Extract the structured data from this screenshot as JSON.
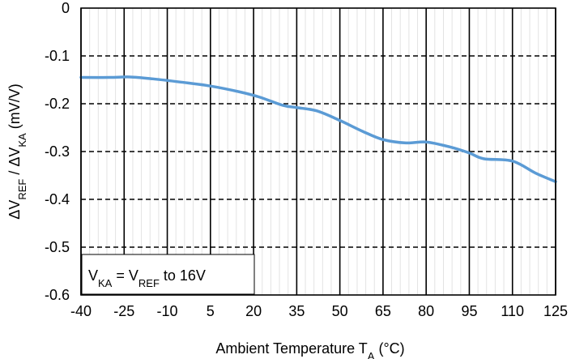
{
  "chart_data": {
    "type": "line",
    "title": "",
    "xlabel": {
      "base": "Ambient Temperature T",
      "sub": "A",
      "unit": " (°C)"
    },
    "ylabel": {
      "parts": [
        {
          "text": "ΔV",
          "sub": false
        },
        {
          "text": "REF",
          "sub": true
        },
        {
          "text": " / ΔV",
          "sub": false
        },
        {
          "text": "KA",
          "sub": true
        },
        {
          "text": " (mV/V)",
          "sub": false
        }
      ]
    },
    "xlim": [
      -40,
      125
    ],
    "ylim": [
      -0.6,
      0
    ],
    "x_ticks": [
      -40,
      -25,
      -10,
      5,
      20,
      35,
      50,
      65,
      80,
      95,
      110,
      125
    ],
    "y_ticks": [
      0,
      -0.1,
      -0.2,
      -0.3,
      -0.4,
      -0.5,
      -0.6
    ],
    "y_tick_labels": [
      "0",
      "-0.1",
      "-0.2",
      "-0.3",
      "-0.4",
      "-0.5",
      "-0.6"
    ],
    "grid": {
      "major_vertical": true,
      "minor_vertical": true,
      "horizontal": "dashed"
    },
    "series": [
      {
        "color": "#5b9bd5",
        "x": [
          -40,
          -30,
          -23,
          -15,
          -5,
          5,
          15,
          22,
          30,
          35,
          42,
          50,
          58,
          65,
          73,
          80,
          88,
          95,
          100,
          110,
          118,
          125
        ],
        "y": [
          -0.145,
          -0.145,
          -0.144,
          -0.148,
          -0.155,
          -0.163,
          -0.175,
          -0.186,
          -0.203,
          -0.208,
          -0.215,
          -0.235,
          -0.258,
          -0.275,
          -0.282,
          -0.28,
          -0.29,
          -0.303,
          -0.315,
          -0.32,
          -0.345,
          -0.363
        ]
      }
    ],
    "annotation": {
      "placement": "bottom-left",
      "parts": [
        {
          "text": "V",
          "sub": false
        },
        {
          "text": "KA",
          "sub": true
        },
        {
          "text": " = V",
          "sub": false
        },
        {
          "text": "REF",
          "sub": true
        },
        {
          "text": " to 16V",
          "sub": false
        }
      ]
    }
  }
}
